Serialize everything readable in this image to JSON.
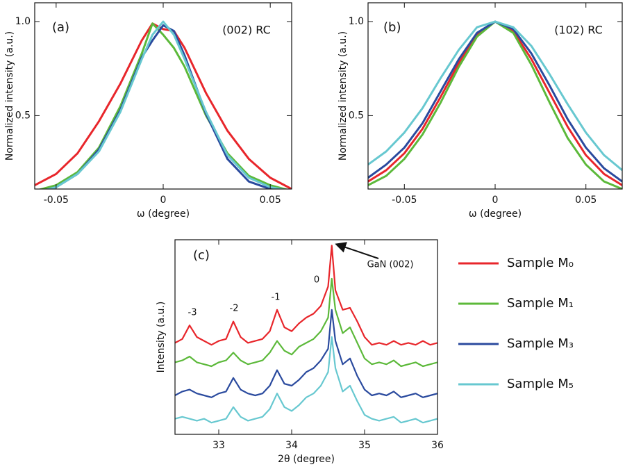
{
  "chart_data": [
    {
      "type": "line",
      "annotations": [
        "(a)",
        "(002) RC"
      ],
      "xlabel": "ω (degree)",
      "ylabel": "Normalized intensity (a.u.)",
      "x": [
        -0.06,
        -0.05,
        -0.04,
        -0.03,
        -0.02,
        -0.01,
        -0.005,
        0,
        0.005,
        0.01,
        0.02,
        0.03,
        0.04,
        0.05,
        0.06
      ],
      "series": [
        {
          "name": "Sample M₀",
          "color": "#e8262b",
          "values": [
            0.13,
            0.19,
            0.3,
            0.47,
            0.67,
            0.9,
            0.99,
            0.96,
            0.95,
            0.86,
            0.62,
            0.42,
            0.27,
            0.17,
            0.11
          ]
        },
        {
          "name": "Sample M₁",
          "color": "#5cb93a",
          "values": [
            0.1,
            0.13,
            0.2,
            0.33,
            0.55,
            0.83,
            0.99,
            0.93,
            0.86,
            0.76,
            0.5,
            0.3,
            0.18,
            0.13,
            0.1
          ]
        },
        {
          "name": "Sample M₃",
          "color": "#2a4a9e",
          "values": [
            0.09,
            0.12,
            0.19,
            0.32,
            0.53,
            0.81,
            0.9,
            0.98,
            0.95,
            0.82,
            0.51,
            0.27,
            0.15,
            0.11,
            0.09
          ]
        },
        {
          "name": "Sample M₅",
          "color": "#67c8d0",
          "values": [
            0.09,
            0.12,
            0.19,
            0.31,
            0.52,
            0.8,
            0.93,
            1.0,
            0.93,
            0.8,
            0.52,
            0.29,
            0.17,
            0.12,
            0.1
          ]
        }
      ],
      "xlim": [
        -0.06,
        0.06
      ],
      "ylim": [
        0.11,
        1.1
      ],
      "xticks": [
        -0.05,
        0,
        0.05
      ],
      "yticks": [
        0.5,
        {
          "value": 1,
          "label": "1.0"
        }
      ],
      "grid": false
    },
    {
      "type": "line",
      "annotations": [
        "(b)",
        "(102) RC"
      ],
      "xlabel": "ω (degree)",
      "ylabel": "Normalized intensity (a.u.)",
      "x": [
        -0.07,
        -0.06,
        -0.05,
        -0.04,
        -0.03,
        -0.02,
        -0.01,
        0,
        0.01,
        0.02,
        0.03,
        0.04,
        0.05,
        0.06,
        0.07
      ],
      "series": [
        {
          "name": "Sample M₀",
          "color": "#e8262b",
          "values": [
            0.15,
            0.21,
            0.3,
            0.43,
            0.6,
            0.78,
            0.93,
            1.0,
            0.95,
            0.8,
            0.62,
            0.44,
            0.29,
            0.19,
            0.13
          ]
        },
        {
          "name": "Sample M₁",
          "color": "#5cb93a",
          "values": [
            0.13,
            0.18,
            0.27,
            0.4,
            0.57,
            0.76,
            0.92,
            1.0,
            0.94,
            0.77,
            0.57,
            0.38,
            0.24,
            0.15,
            0.11
          ]
        },
        {
          "name": "Sample M₃",
          "color": "#2a4a9e",
          "values": [
            0.17,
            0.24,
            0.33,
            0.46,
            0.63,
            0.8,
            0.94,
            1.0,
            0.96,
            0.83,
            0.66,
            0.48,
            0.33,
            0.22,
            0.15
          ]
        },
        {
          "name": "Sample M₅",
          "color": "#67c8d0",
          "values": [
            0.24,
            0.31,
            0.41,
            0.54,
            0.7,
            0.85,
            0.97,
            1.0,
            0.97,
            0.87,
            0.72,
            0.56,
            0.41,
            0.29,
            0.21
          ]
        }
      ],
      "xlim": [
        -0.07,
        0.07
      ],
      "ylim": [
        0.11,
        1.1
      ],
      "xticks": [
        -0.05,
        0,
        0.05
      ],
      "yticks": [
        0.5,
        {
          "value": 1,
          "label": "1.0"
        }
      ],
      "grid": false
    },
    {
      "type": "line",
      "annotations": [
        "(c)",
        "-3",
        "-2",
        "-1",
        "0",
        "GaN (002)"
      ],
      "xlabel": "2θ (degree)",
      "ylabel": "Intensity (a.u.)",
      "x": [
        32.4,
        32.5,
        32.6,
        32.7,
        32.8,
        32.9,
        33.0,
        33.1,
        33.2,
        33.3,
        33.4,
        33.5,
        33.6,
        33.7,
        33.8,
        33.9,
        34.0,
        34.1,
        34.2,
        34.3,
        34.4,
        34.5,
        34.55,
        34.6,
        34.7,
        34.8,
        34.9,
        35.0,
        35.1,
        35.2,
        35.3,
        35.4,
        35.5,
        35.6,
        35.7,
        35.8,
        35.9,
        36.0
      ],
      "series": [
        {
          "name": "Sample M₀",
          "color": "#e8262b",
          "values": [
            4.7,
            4.9,
            5.6,
            5.0,
            4.8,
            4.6,
            4.8,
            4.9,
            5.8,
            5.0,
            4.7,
            4.8,
            4.9,
            5.3,
            6.4,
            5.5,
            5.3,
            5.7,
            6.0,
            6.2,
            6.6,
            7.6,
            9.7,
            7.4,
            6.4,
            6.5,
            5.8,
            5.0,
            4.6,
            4.7,
            4.6,
            4.8,
            4.6,
            4.7,
            4.6,
            4.8,
            4.6,
            4.7
          ]
        },
        {
          "name": "Sample M₁",
          "color": "#5cb93a",
          "values": [
            3.7,
            3.8,
            4.0,
            3.7,
            3.6,
            3.5,
            3.7,
            3.8,
            4.2,
            3.8,
            3.6,
            3.7,
            3.8,
            4.2,
            4.8,
            4.3,
            4.1,
            4.5,
            4.7,
            4.9,
            5.3,
            6.0,
            8.0,
            6.4,
            5.2,
            5.5,
            4.7,
            3.9,
            3.6,
            3.7,
            3.6,
            3.8,
            3.5,
            3.6,
            3.7,
            3.5,
            3.6,
            3.7
          ]
        },
        {
          "name": "Sample M₃",
          "color": "#2a4a9e",
          "values": [
            2.0,
            2.2,
            2.3,
            2.1,
            2.0,
            1.9,
            2.1,
            2.2,
            2.9,
            2.3,
            2.1,
            2.0,
            2.1,
            2.5,
            3.3,
            2.6,
            2.5,
            2.8,
            3.2,
            3.4,
            3.8,
            4.4,
            6.4,
            4.8,
            3.6,
            3.9,
            3.0,
            2.3,
            2.0,
            2.1,
            2.0,
            2.2,
            1.9,
            2.0,
            2.1,
            1.9,
            2.0,
            2.1
          ]
        },
        {
          "name": "Sample M₅",
          "color": "#67c8d0",
          "values": [
            0.8,
            0.9,
            0.8,
            0.7,
            0.8,
            0.6,
            0.7,
            0.8,
            1.4,
            0.9,
            0.7,
            0.8,
            0.9,
            1.3,
            2.1,
            1.4,
            1.2,
            1.5,
            1.9,
            2.1,
            2.5,
            3.2,
            5.0,
            3.4,
            2.2,
            2.5,
            1.7,
            1.0,
            0.8,
            0.7,
            0.8,
            0.9,
            0.6,
            0.7,
            0.8,
            0.6,
            0.7,
            0.8
          ]
        }
      ],
      "xlim": [
        32.4,
        36
      ],
      "ylim": [
        0,
        10
      ],
      "xticks": [
        33,
        34,
        35,
        36
      ],
      "yticks": [],
      "grid": false,
      "legend": "right"
    }
  ]
}
